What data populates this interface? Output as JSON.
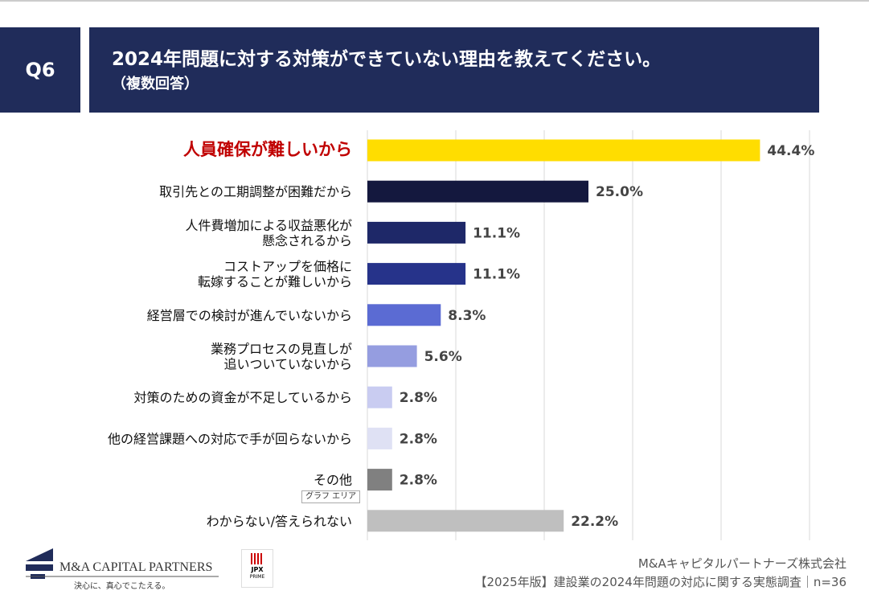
{
  "header": {
    "q": "Q6",
    "title": "2024年問題に対する対策ができていない理由を教えてください。",
    "subtitle": "（複数回答）"
  },
  "chart_data": {
    "type": "bar",
    "orientation": "horizontal",
    "xlim": [
      0,
      50
    ],
    "grid": true,
    "categories": [
      "人員確保が難しいから",
      "取引先との工期調整が困難だから",
      "人件費増加による収益悪化が\n懸念されるから",
      "コストアップを価格に\n転嫁することが難しいから",
      "経営層での検討が進んでいないから",
      "業務プロセスの見直しが\n追いついていないから",
      "対策のための資金が不足しているから",
      "他の経営課題への対応で手が回らないから",
      "その他",
      "わからない/答えられない"
    ],
    "values": [
      44.4,
      25.0,
      11.1,
      11.1,
      8.3,
      5.6,
      2.8,
      2.8,
      2.8,
      22.2
    ],
    "data_labels": [
      "44.4%",
      "25.0%",
      "11.1%",
      "11.1%",
      "8.3%",
      "5.6%",
      "2.8%",
      "2.8%",
      "2.8%",
      "22.2%"
    ],
    "colors": [
      "#ffdd00",
      "#14183e",
      "#1e2868",
      "#26338a",
      "#5b6bd3",
      "#959de0",
      "#c9ccf1",
      "#dfe1f4",
      "#808080",
      "#bfbfbf"
    ],
    "highlight_label_color": "#c00000"
  },
  "tooltip": "グラフ エリア",
  "logo": {
    "name": "M&A CAPITAL PARTNERS",
    "tagline": "決心に、真心でこたえる。",
    "jpx": "JPX",
    "prime": "PRIME"
  },
  "footer": {
    "company": "M&Aキャピタルパートナーズ株式会社",
    "survey": "【2025年版】建設業の2024年問題の対応に関する実態調査｜n=36"
  }
}
